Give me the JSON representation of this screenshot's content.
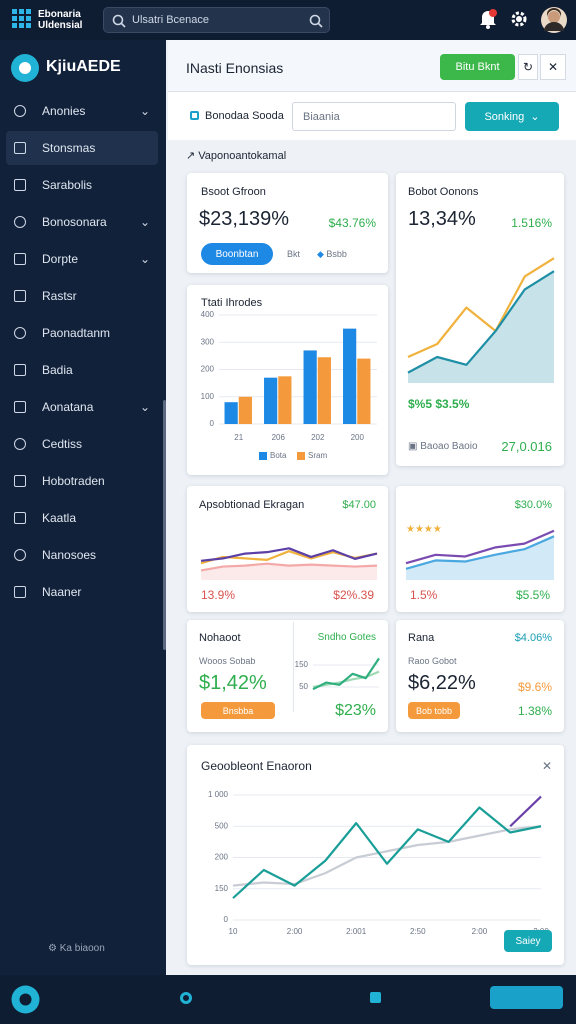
{
  "topbar": {
    "brand": [
      "Ebonaria",
      "Uldensial"
    ],
    "search": "Ulsatri Bcenace"
  },
  "sidebar": {
    "brand": "KjiuAEDE",
    "active": 1,
    "items": [
      {
        "label": "Anonies",
        "expandable": true
      },
      {
        "label": "Stonsmas"
      },
      {
        "label": "Sarabolis"
      },
      {
        "label": "Bonosonara",
        "expandable": true
      },
      {
        "label": "Dorpte",
        "expandable": true
      },
      {
        "label": "Rastsr"
      },
      {
        "label": "Paonadtanm"
      },
      {
        "label": "Badia"
      },
      {
        "label": "Aonatana",
        "expandable": true
      },
      {
        "label": "Cedtiss"
      },
      {
        "label": "Hobotraden"
      },
      {
        "label": "Kaatla"
      },
      {
        "label": "Nanosoes"
      },
      {
        "label": "Naaner"
      }
    ],
    "footer": "Ka biaoon"
  },
  "header": {
    "title": "INasti Enonsias",
    "button": "Bitu Bknt"
  },
  "filters": {
    "label": "Bonodaa Sooda",
    "input": "Biaania",
    "button": "Sonking"
  },
  "section": "Vaponoantokamal",
  "cards": [
    {
      "title": "Bsoot Gfroon",
      "value": "$23,139%",
      "change": "$43.76%",
      "button": "Boonbtan",
      "link1": "Bkt",
      "link2": "Bsbb"
    },
    {
      "title": "Bobot Oonons",
      "value": "13,34%",
      "change": "1.516%",
      "note": "$%5 $3.5%",
      "foot": "Baoao Baoio",
      "foot_value": "27,0.016"
    },
    {
      "title": "Apsobtionad Ekragan",
      "change": "$47.00",
      "low": "13.9%",
      "high": "$2%.39"
    },
    {
      "change": "$30.0%",
      "low": "1.5%",
      "high": "$5.5%"
    },
    {
      "title": "Nohaoot",
      "tag": "Sndho Gotes",
      "label": "Wooos Sobab",
      "value": "$1,42%",
      "button": "Bnsbba",
      "change": "$23%"
    },
    {
      "title": "Rana",
      "tag": "$4.06%",
      "label": "Raoo Gobot",
      "value": "$6,22%",
      "change": "$9.6%",
      "button": "Bob tobb",
      "change2": "1.38%"
    },
    {
      "button": "Saiey"
    }
  ],
  "chart_data": [
    {
      "type": "line",
      "ylim": [
        0,
        100
      ],
      "series": [
        {
          "color": "#f0b23c",
          "values": [
            20,
            30,
            58,
            40,
            82,
            96
          ]
        },
        {
          "color": "#1f8fa6",
          "area": true,
          "values": [
            8,
            20,
            14,
            40,
            72,
            86
          ]
        }
      ]
    },
    {
      "type": "bar",
      "title": "Ttati Ihrodes",
      "categories": [
        "21",
        "206",
        "202",
        "200"
      ],
      "ylim": [
        0,
        400
      ],
      "yticks": [
        0,
        100,
        200,
        300,
        400
      ],
      "series": [
        {
          "name": "Bota",
          "color": "#1e88e5",
          "values": [
            80,
            170,
            270,
            350
          ]
        },
        {
          "name": "Sram",
          "color": "#f59a3c",
          "values": [
            100,
            175,
            245,
            240
          ]
        }
      ]
    },
    {
      "type": "line",
      "ylim": [
        0,
        100
      ],
      "series": [
        {
          "color": "#f4a9a9",
          "area": true,
          "values": [
            20,
            28,
            30,
            34,
            30,
            32,
            30,
            28,
            30
          ]
        },
        {
          "color": "#f0b23c",
          "values": [
            35,
            48,
            45,
            42,
            60,
            45,
            58,
            46,
            55
          ]
        },
        {
          "color": "#5b3fa6",
          "values": [
            40,
            45,
            55,
            58,
            66,
            48,
            62,
            44,
            55
          ]
        }
      ]
    },
    {
      "type": "line",
      "ylim": [
        0,
        100
      ],
      "series": [
        {
          "color": "#4aa8e0",
          "area": true,
          "values": [
            20,
            35,
            33,
            45,
            55,
            78
          ]
        },
        {
          "color": "#7a4bb0",
          "values": [
            30,
            45,
            42,
            58,
            65,
            88
          ]
        }
      ]
    },
    {
      "type": "line",
      "ylim": [
        0,
        200
      ],
      "yticks": [
        50,
        150
      ],
      "series": [
        {
          "color": "#9ed9b5",
          "values": [
            50,
            60,
            70,
            85,
            95,
            120
          ]
        },
        {
          "color": "#2fae7e",
          "values": [
            40,
            70,
            60,
            110,
            90,
            180
          ]
        }
      ]
    },
    {
      "type": "line",
      "title": "Geoobleont Enaoron",
      "ylim": [
        0,
        400
      ],
      "yticks": [
        0,
        {
          "value": 100,
          "label": "150"
        },
        200,
        {
          "value": 300,
          "label": "500"
        },
        {
          "value": 400,
          "label": "1 000"
        }
      ],
      "categories": [
        "10",
        null,
        "2:00",
        null,
        "2:001",
        null,
        "2:50",
        null,
        "2:00",
        null,
        "2:00"
      ],
      "series": [
        {
          "color": "#c8ccd4",
          "values": [
            110,
            120,
            115,
            150,
            200,
            220,
            240,
            250,
            270,
            290,
            300
          ]
        },
        {
          "color": "#1a9e98",
          "values": [
            70,
            160,
            110,
            190,
            310,
            180,
            290,
            250,
            360,
            280,
            300
          ]
        },
        {
          "color": "#6a3fa8",
          "values": [
            null,
            null,
            null,
            null,
            null,
            null,
            null,
            null,
            null,
            300,
            395
          ]
        }
      ]
    }
  ]
}
